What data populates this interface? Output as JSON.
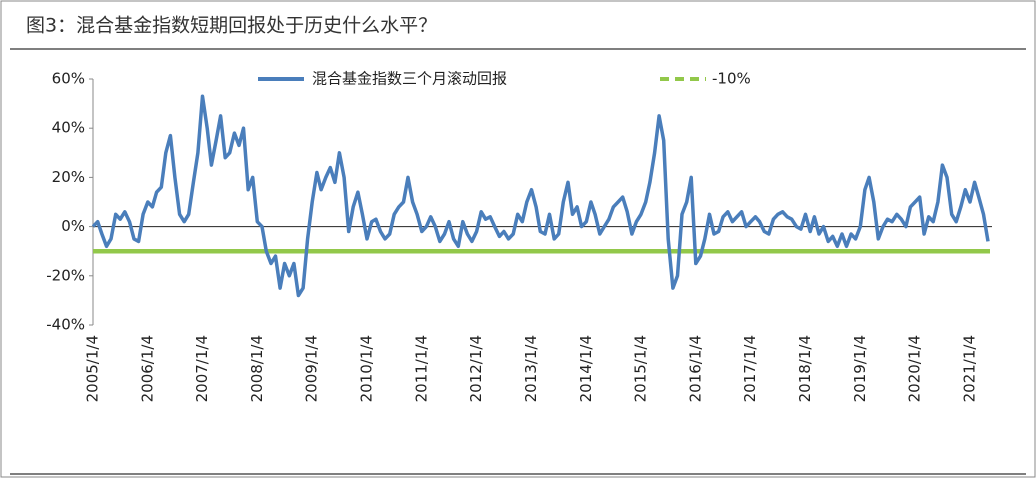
{
  "chart_data": {
    "type": "line",
    "title": "图3：混合基金指数短期回报处于历史什么水平？",
    "x": [
      "2005/1/4",
      "2005/2/4",
      "2005/3/4",
      "2005/4/4",
      "2005/5/4",
      "2005/6/4",
      "2005/7/4",
      "2005/8/4",
      "2005/9/4",
      "2005/10/4",
      "2005/11/4",
      "2005/12/4",
      "2006/1/4",
      "2006/2/4",
      "2006/3/4",
      "2006/4/4",
      "2006/5/4",
      "2006/6/4",
      "2006/7/4",
      "2006/8/4",
      "2006/9/4",
      "2006/10/4",
      "2006/11/4",
      "2006/12/4",
      "2007/1/4",
      "2007/2/4",
      "2007/3/4",
      "2007/4/4",
      "2007/5/4",
      "2007/6/4",
      "2007/7/4",
      "2007/8/4",
      "2007/9/4",
      "2007/10/4",
      "2007/11/4",
      "2007/12/4",
      "2008/1/4",
      "2008/2/4",
      "2008/3/4",
      "2008/4/4",
      "2008/5/4",
      "2008/6/4",
      "2008/7/4",
      "2008/8/4",
      "2008/9/4",
      "2008/10/4",
      "2008/11/4",
      "2008/12/4",
      "2009/1/4",
      "2009/2/4",
      "2009/3/4",
      "2009/4/4",
      "2009/5/4",
      "2009/6/4",
      "2009/7/4",
      "2009/8/4",
      "2009/9/4",
      "2009/10/4",
      "2009/11/4",
      "2009/12/4",
      "2010/1/4",
      "2010/2/4",
      "2010/3/4",
      "2010/4/4",
      "2010/5/4",
      "2010/6/4",
      "2010/7/4",
      "2010/8/4",
      "2010/9/4",
      "2010/10/4",
      "2010/11/4",
      "2010/12/4",
      "2011/1/4",
      "2011/2/4",
      "2011/3/4",
      "2011/4/4",
      "2011/5/4",
      "2011/6/4",
      "2011/7/4",
      "2011/8/4",
      "2011/9/4",
      "2011/10/4",
      "2011/11/4",
      "2011/12/4",
      "2012/1/4",
      "2012/2/4",
      "2012/3/4",
      "2012/4/4",
      "2012/5/4",
      "2012/6/4",
      "2012/7/4",
      "2012/8/4",
      "2012/9/4",
      "2012/10/4",
      "2012/11/4",
      "2012/12/4",
      "2013/1/4",
      "2013/2/4",
      "2013/3/4",
      "2013/4/4",
      "2013/5/4",
      "2013/6/4",
      "2013/7/4",
      "2013/8/4",
      "2013/9/4",
      "2013/10/4",
      "2013/11/4",
      "2013/12/4",
      "2014/1/4",
      "2014/2/4",
      "2014/3/4",
      "2014/4/4",
      "2014/5/4",
      "2014/6/4",
      "2014/7/4",
      "2014/8/4",
      "2014/9/4",
      "2014/10/4",
      "2014/11/4",
      "2014/12/4",
      "2015/1/4",
      "2015/2/4",
      "2015/3/4",
      "2015/4/4",
      "2015/5/4",
      "2015/6/4",
      "2015/7/4",
      "2015/8/4",
      "2015/9/4",
      "2015/10/4",
      "2015/11/4",
      "2015/12/4",
      "2016/1/4",
      "2016/2/4",
      "2016/3/4",
      "2016/4/4",
      "2016/5/4",
      "2016/6/4",
      "2016/7/4",
      "2016/8/4",
      "2016/9/4",
      "2016/10/4",
      "2016/11/4",
      "2016/12/4",
      "2017/1/4",
      "2017/2/4",
      "2017/3/4",
      "2017/4/4",
      "2017/5/4",
      "2017/6/4",
      "2017/7/4",
      "2017/8/4",
      "2017/9/4",
      "2017/10/4",
      "2017/11/4",
      "2017/12/4",
      "2018/1/4",
      "2018/2/4",
      "2018/3/4",
      "2018/4/4",
      "2018/5/4",
      "2018/6/4",
      "2018/7/4",
      "2018/8/4",
      "2018/9/4",
      "2018/10/4",
      "2018/11/4",
      "2018/12/4",
      "2019/1/4",
      "2019/2/4",
      "2019/3/4",
      "2019/4/4",
      "2019/5/4",
      "2019/6/4",
      "2019/7/4",
      "2019/8/4",
      "2019/9/4",
      "2019/10/4",
      "2019/11/4",
      "2019/12/4",
      "2020/1/4",
      "2020/2/4",
      "2020/3/4",
      "2020/4/4",
      "2020/5/4",
      "2020/6/4",
      "2020/7/4",
      "2020/8/4",
      "2020/9/4",
      "2020/10/4",
      "2020/11/4",
      "2020/12/4",
      "2021/1/4",
      "2021/2/4",
      "2021/3/4",
      "2021/4/4",
      "2021/5/4"
    ],
    "series": [
      {
        "name": "混合基金指数三个月滚动回报",
        "color": "#4a7ebb",
        "values": [
          0,
          2,
          -3,
          -8,
          -5,
          5,
          3,
          6,
          2,
          -5,
          -6,
          5,
          10,
          8,
          14,
          16,
          30,
          37,
          20,
          5,
          2,
          5,
          18,
          30,
          53,
          40,
          25,
          35,
          45,
          28,
          30,
          38,
          33,
          40,
          15,
          20,
          2,
          0,
          -10,
          -15,
          -12,
          -25,
          -15,
          -20,
          -15,
          -28,
          -25,
          -5,
          10,
          22,
          15,
          20,
          24,
          18,
          30,
          20,
          -2,
          8,
          14,
          5,
          -5,
          2,
          3,
          -2,
          -5,
          -3,
          5,
          8,
          10,
          20,
          10,
          5,
          -2,
          0,
          4,
          0,
          -6,
          -3,
          2,
          -5,
          -8,
          2,
          -3,
          -6,
          -2,
          6,
          3,
          4,
          0,
          -4,
          -2,
          -5,
          -3,
          5,
          2,
          10,
          15,
          8,
          -2,
          -3,
          5,
          -5,
          -3,
          10,
          18,
          5,
          8,
          0,
          2,
          10,
          5,
          -3,
          0,
          3,
          8,
          10,
          12,
          6,
          -3,
          2,
          5,
          10,
          18,
          30,
          45,
          35,
          -5,
          -25,
          -20,
          5,
          10,
          20,
          -15,
          -12,
          -5,
          5,
          -3,
          -2,
          4,
          6,
          2,
          4,
          6,
          0,
          2,
          4,
          2,
          -2,
          -3,
          3,
          5,
          6,
          4,
          3,
          0,
          -1,
          5,
          -2,
          4,
          -3,
          0,
          -6,
          -4,
          -8,
          -3,
          -8,
          -3,
          -5,
          0,
          15,
          20,
          10,
          -5,
          0,
          3,
          2,
          5,
          3,
          0,
          8,
          10,
          12,
          -3,
          4,
          2,
          10,
          25,
          20,
          5,
          2,
          8,
          15,
          10,
          18,
          12,
          5,
          -6
        ]
      }
    ],
    "reference_line": {
      "name": "-10%",
      "value": -10,
      "color": "#92c84a"
    },
    "ylim": [
      -40,
      60
    ],
    "yticks": [
      {
        "value": -40,
        "label": "-40%"
      },
      {
        "value": -20,
        "label": "-20%"
      },
      {
        "value": 0,
        "label": "0%"
      },
      {
        "value": 20,
        "label": "20%"
      },
      {
        "value": 40,
        "label": "40%"
      },
      {
        "value": 60,
        "label": "60%"
      }
    ],
    "xticks": [
      "2005/1/4",
      "2006/1/4",
      "2007/1/4",
      "2008/1/4",
      "2009/1/4",
      "2010/1/4",
      "2011/1/4",
      "2012/1/4",
      "2013/1/4",
      "2014/1/4",
      "2015/1/4",
      "2016/1/4",
      "2017/1/4",
      "2018/1/4",
      "2019/1/4",
      "2020/1/4",
      "2021/1/4"
    ]
  }
}
